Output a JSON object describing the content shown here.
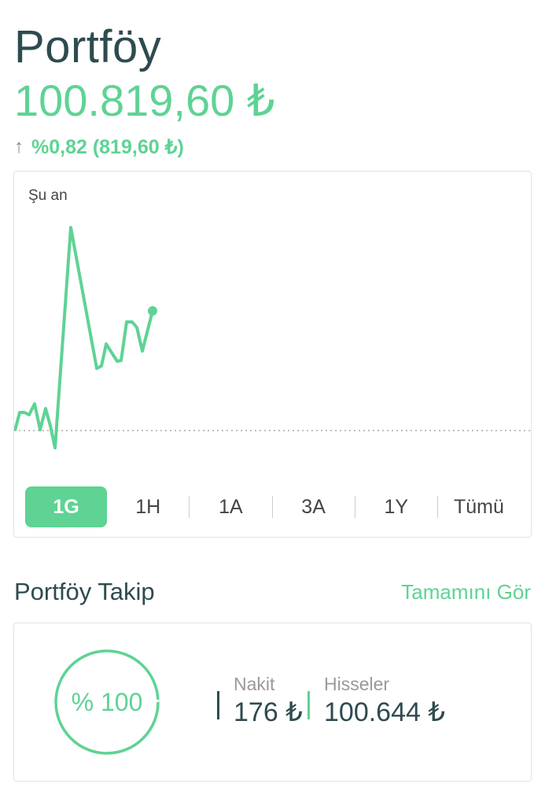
{
  "header": {
    "title": "Portföy",
    "total_value": "100.819,60 ₺",
    "change_icon": "arrow-up-icon",
    "change_text": "%0,82 (819,60 ₺)"
  },
  "chart": {
    "label": "Şu an",
    "line_color": "#5ed394",
    "baseline": "dotted",
    "ranges": [
      {
        "label": "1G",
        "active": true
      },
      {
        "label": "1H",
        "active": false
      },
      {
        "label": "1A",
        "active": false
      },
      {
        "label": "3A",
        "active": false
      },
      {
        "label": "1Y",
        "active": false
      },
      {
        "label": "Tümü",
        "active": false
      }
    ]
  },
  "tracking": {
    "title": "Portföy Takip",
    "see_all": "Tamamını Gör",
    "ring_label": "% 100",
    "cash": {
      "label": "Nakit",
      "value": "176 ₺",
      "color": "#2e4b4f"
    },
    "stocks": {
      "label": "Hisseler",
      "value": "100.644 ₺",
      "color": "#5ed394"
    }
  },
  "colors": {
    "accent": "#5ed394",
    "text_dark": "#2e4b4f"
  }
}
